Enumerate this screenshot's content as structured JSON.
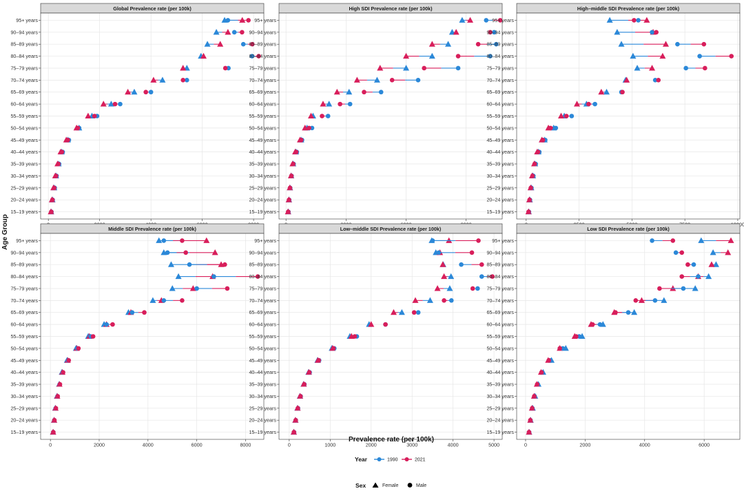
{
  "colors": {
    "year_1990": "#2B88D8",
    "year_2021": "#D81E5B",
    "grid": "#e6e6e6",
    "strip_bg": "#d9d9d9"
  },
  "ylabel": "Age Group",
  "xlabel": "Prevalence rate (per 100k)",
  "legend": {
    "year_title": "Year",
    "year_items": [
      "1990",
      "2021"
    ],
    "sex_title": "Sex",
    "sex_items": [
      "Female",
      "Male"
    ],
    "placement": "bottom"
  },
  "chart_data": [
    {
      "type": "dumbbell",
      "title": "Global Prevalence rate (per 100k)",
      "categories": [
        "95+ years",
        "90–94 years",
        "85–89 years",
        "80–84 years",
        "75–79 years",
        "70–74 years",
        "65–69 years",
        "60–64 years",
        "55–59 years",
        "50–54 years",
        "45–49 years",
        "40–44 years",
        "35–39 years",
        "30–34 years",
        "25–29 years",
        "20–24 years",
        "15–19 years"
      ],
      "xlim": [
        -300,
        8400
      ],
      "xticks": [
        0,
        2000,
        4000,
        6000,
        8000
      ],
      "series": [
        {
          "name": "Female",
          "y1990": [
            6870,
            6550,
            6200,
            5950,
            5400,
            4450,
            3350,
            2450,
            1700,
            1200,
            760,
            520,
            400,
            300,
            230,
            160,
            110
          ],
          "y2021": [
            7560,
            7000,
            6700,
            6050,
            5250,
            4100,
            3100,
            2150,
            1550,
            1100,
            700,
            480,
            360,
            270,
            200,
            140,
            100
          ]
        },
        {
          "name": "Male",
          "y1990": [
            7000,
            7250,
            7600,
            7940,
            7020,
            5400,
            4000,
            2800,
            1900,
            1200,
            800,
            560,
            420,
            320,
            250,
            170,
            120
          ],
          "y2021": [
            7800,
            7550,
            7950,
            8200,
            6900,
            5250,
            3800,
            2600,
            1800,
            1150,
            760,
            530,
            390,
            300,
            230,
            160,
            115
          ]
        }
      ]
    },
    {
      "type": "dumbbell",
      "title": "High SDI Prevalence rate (per 100k)",
      "categories": [
        "95+ years",
        "90–94 years",
        "85–89 years",
        "80–84 years",
        "75–79 years",
        "70–74 years",
        "65–69 years",
        "60–64 years",
        "55–59 years",
        "50–54 years",
        "45–49 years",
        "40–44 years",
        "35–39 years",
        "30–34 years",
        "25–29 years",
        "20–24 years",
        "15–19 years"
      ],
      "xlim": [
        -350,
        10800
      ],
      "xticks": [
        0,
        3000,
        6000,
        9000
      ],
      "series": [
        {
          "name": "Female",
          "y1990": [
            8800,
            8300,
            8100,
            7300,
            6000,
            4550,
            3150,
            2150,
            1350,
            1050,
            760,
            500,
            360,
            260,
            200,
            150,
            110
          ],
          "y2021": [
            9200,
            8500,
            7300,
            6000,
            4700,
            3550,
            2550,
            1850,
            1250,
            950,
            700,
            460,
            330,
            250,
            190,
            140,
            100
          ]
        },
        {
          "name": "Male",
          "y1990": [
            10000,
            10400,
            10500,
            10200,
            8600,
            6600,
            4750,
            3200,
            2100,
            1300,
            800,
            540,
            380,
            280,
            210,
            160,
            120
          ],
          "y2021": [
            10700,
            10200,
            9600,
            8600,
            6900,
            5300,
            3900,
            2700,
            1800,
            1150,
            760,
            510,
            360,
            270,
            200,
            150,
            110
          ]
        }
      ]
    },
    {
      "type": "dumbbell",
      "title": "High–middle SDI Prevalence rate (per 100k)",
      "categories": [
        "95+ years",
        "90–94 years",
        "85–89 years",
        "80–84 years",
        "75–79 years",
        "70–74 years",
        "65–69 years",
        "60–64 years",
        "55–59 years",
        "50–54 years",
        "45–49 years",
        "40–44 years",
        "35–39 years",
        "30–34 years",
        "25–29 years",
        "20–24 years",
        "15–19 years"
      ],
      "xlim": [
        -450,
        10100
      ],
      "xticks": [
        0,
        2500,
        5000,
        7500,
        10000
      ],
      "series": [
        {
          "name": "Female",
          "y1990": [
            3950,
            4300,
            4500,
            5050,
            5250,
            4700,
            3800,
            2850,
            1800,
            1300,
            870,
            580,
            420,
            320,
            240,
            170,
            120
          ],
          "y2021": [
            5700,
            6000,
            6600,
            6450,
            5950,
            4750,
            3550,
            2400,
            1650,
            1050,
            740,
            520,
            380,
            280,
            210,
            150,
            110
          ]
        },
        {
          "name": "Male",
          "y1990": [
            5300,
            5950,
            7150,
            8200,
            7550,
            6100,
            4500,
            3250,
            2150,
            1400,
            900,
            620,
            450,
            340,
            250,
            180,
            130
          ],
          "y2021": [
            5100,
            6150,
            8400,
            9700,
            8450,
            6250,
            4550,
            2950,
            1900,
            1150,
            790,
            560,
            400,
            300,
            220,
            160,
            115
          ]
        }
      ]
    },
    {
      "type": "dumbbell",
      "title": "Middle SDI Prevalence rate (per 100k)",
      "categories": [
        "95+ years",
        "90–94 years",
        "85–89 years",
        "80–84 years",
        "75–79 years",
        "70–74 years",
        "65–69 years",
        "60–64 years",
        "55–59 years",
        "50–54 years",
        "45–49 years",
        "40–44 years",
        "35–39 years",
        "30–34 years",
        "25–29 years",
        "20–24 years",
        "15–19 years"
      ],
      "xlim": [
        -400,
        8750
      ],
      "xticks": [
        0,
        2000,
        4000,
        6000,
        8000
      ],
      "series": [
        {
          "name": "Female",
          "y1990": [
            4450,
            4650,
            4950,
            5250,
            5000,
            4200,
            3200,
            2200,
            1550,
            1050,
            680,
            470,
            360,
            270,
            200,
            150,
            110
          ],
          "y2021": [
            6400,
            6750,
            7000,
            6650,
            5850,
            4550,
            3300,
            2300,
            1600,
            1080,
            710,
            490,
            370,
            280,
            210,
            155,
            112
          ]
        },
        {
          "name": "Male",
          "y1990": [
            4650,
            4800,
            5700,
            6700,
            6000,
            4650,
            3350,
            2300,
            1650,
            1100,
            720,
            500,
            380,
            290,
            215,
            160,
            118
          ],
          "y2021": [
            5400,
            5550,
            7150,
            8500,
            7250,
            5400,
            3850,
            2550,
            1750,
            1150,
            750,
            520,
            390,
            300,
            225,
            165,
            120
          ]
        }
      ]
    },
    {
      "type": "dumbbell",
      "title": "Low–middle SDI Prevalence rate (per 100k)",
      "categories": [
        "95+ years",
        "90–94 years",
        "85–89 years",
        "80–84 years",
        "75–79 years",
        "70–74 years",
        "65–69 years",
        "60–64 years",
        "55–59 years",
        "50–54 years",
        "45–49 years",
        "40–44 years",
        "35–39 years",
        "30–34 years",
        "25–29 years",
        "20–24 years",
        "15–19 years"
      ],
      "xlim": [
        -250,
        5200
      ],
      "xticks": [
        0,
        1000,
        2000,
        3000,
        4000,
        5000
      ],
      "series": [
        {
          "name": "Female",
          "y1990": [
            3480,
            3580,
            3760,
            3950,
            3920,
            3440,
            2750,
            1950,
            1480,
            1040,
            690,
            470,
            350,
            260,
            200,
            150,
            110
          ],
          "y2021": [
            3900,
            3680,
            3750,
            3780,
            3620,
            3080,
            2550,
            2000,
            1520,
            1060,
            700,
            480,
            355,
            265,
            205,
            152,
            112
          ]
        },
        {
          "name": "Male",
          "y1990": [
            3500,
            3650,
            4200,
            4700,
            4600,
            3960,
            3150,
            2350,
            1650,
            1100,
            730,
            500,
            370,
            280,
            215,
            160,
            118
          ],
          "y2021": [
            4620,
            4460,
            4700,
            4960,
            4480,
            3780,
            3050,
            2350,
            1600,
            1080,
            720,
            490,
            365,
            275,
            210,
            158,
            115
          ]
        }
      ]
    },
    {
      "type": "dumbbell",
      "title": "Low SDI Prevalence rate (per 100k)",
      "categories": [
        "95+ years",
        "90–94 years",
        "85–89 years",
        "80–84 years",
        "75–79 years",
        "70–74 years",
        "65–69 years",
        "60–64 years",
        "55–59 years",
        "50–54 years",
        "45–49 years",
        "40–44 years",
        "35–39 years",
        "30–34 years",
        "25–29 years",
        "20–24 years",
        "15–19 years"
      ],
      "xlim": [
        -300,
        7200
      ],
      "xticks": [
        0,
        2000,
        4000,
        6000
      ],
      "series": [
        {
          "name": "Female",
          "y1990": [
            5900,
            6300,
            6400,
            6150,
            5700,
            4650,
            3650,
            2600,
            1900,
            1350,
            870,
            590,
            430,
            320,
            240,
            170,
            120
          ],
          "y2021": [
            6900,
            6800,
            6250,
            5800,
            4950,
            3900,
            2980,
            2200,
            1650,
            1150,
            760,
            520,
            380,
            285,
            215,
            160,
            115
          ]
        },
        {
          "name": "Male",
          "y1990": [
            4250,
            5050,
            5650,
            5800,
            5300,
            4350,
            3450,
            2500,
            1800,
            1250,
            820,
            560,
            410,
            305,
            230,
            165,
            118
          ],
          "y2021": [
            4950,
            5250,
            5450,
            5250,
            4500,
            3700,
            3020,
            2250,
            1700,
            1150,
            780,
            535,
            390,
            290,
            220,
            160,
            115
          ]
        }
      ]
    }
  ]
}
